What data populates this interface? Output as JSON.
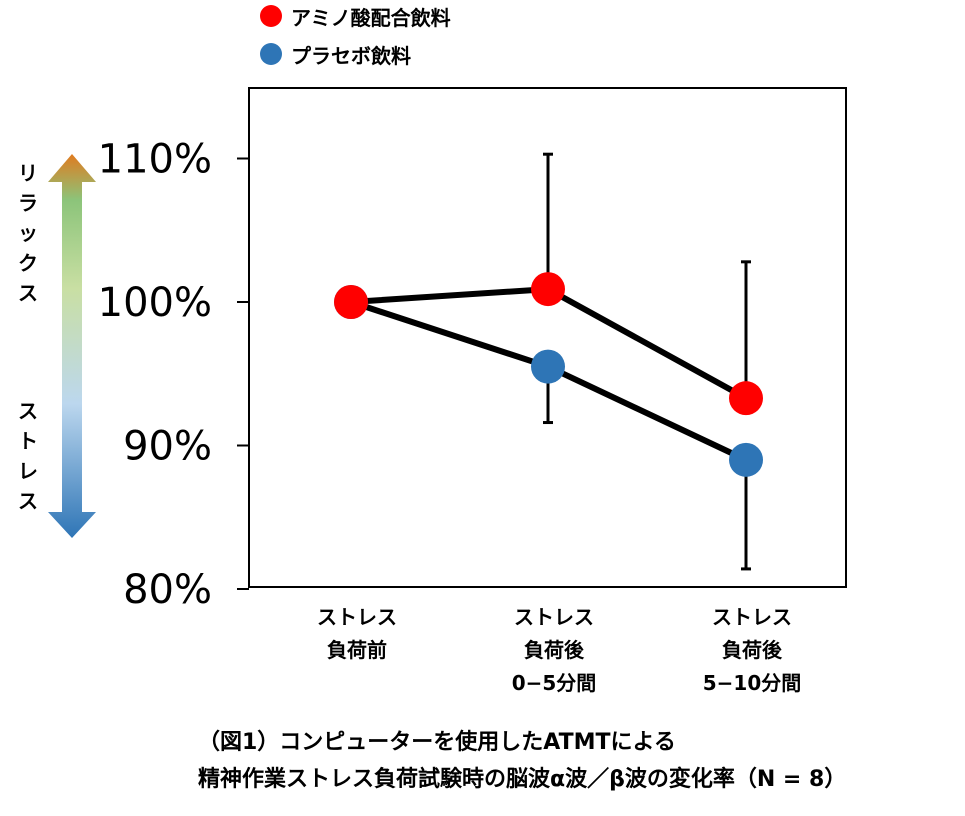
{
  "chart_data": {
    "type": "line",
    "title": "",
    "xlabel": "",
    "ylabel": "",
    "categories": [
      [
        "ストレス",
        "負荷前"
      ],
      [
        "ストレス",
        "負荷後",
        "0−5分間"
      ],
      [
        "ストレス",
        "負荷後",
        "5−10分間"
      ]
    ],
    "y_ticks": [
      "80%",
      "90%",
      "100%",
      "110%"
    ],
    "y_tick_values": [
      80,
      90,
      100,
      110
    ],
    "ylim": [
      80,
      112
    ],
    "grid": false,
    "legend_position": "top-left",
    "series": [
      {
        "name": "プラセボ飲料",
        "color": "#2e75b6",
        "values": [
          100,
          95.5,
          89
        ],
        "error_low": [
          0,
          3.9,
          7.6
        ],
        "error_high": [
          0,
          0,
          0
        ]
      },
      {
        "name": "アミノ酸配合飲料",
        "color": "#ff0000",
        "values": [
          100,
          100.9,
          93.3
        ],
        "error_low": [
          0,
          0,
          0
        ],
        "error_high": [
          0,
          9.4,
          9.5
        ]
      }
    ],
    "legend": [
      {
        "label": "アミノ酸配合飲料",
        "color": "#ff0000"
      },
      {
        "label": "プラセボ飲料",
        "color": "#2e75b6"
      }
    ],
    "side_scale": {
      "top_label": "リラックス",
      "bottom_label": "ストレス",
      "top_color": "#e07b1f",
      "mid_color": "#c9dfa3",
      "bottom_color": "#2e75b6"
    }
  },
  "caption": [
    "（図1）コンピューターを使用したATMTによる",
    "精神作業ストレス負荷試験時の脳波α波／β波の変化率（N = 8）"
  ]
}
